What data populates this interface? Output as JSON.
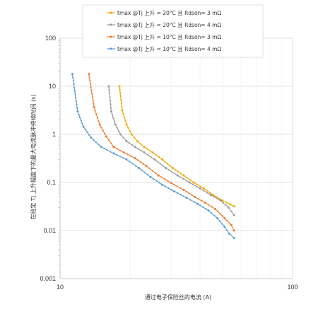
{
  "chart_data": {
    "type": "line",
    "title": "",
    "xlabel": "通过电子保险丝的电流 (A)",
    "ylabel": "在给定 Tj 上升幅度下的最大电流脉冲持续时间 (s)",
    "x_scale": "log",
    "y_scale": "log",
    "xlim": [
      10,
      100
    ],
    "ylim": [
      0.001,
      100
    ],
    "x_ticks": [
      "10",
      "100"
    ],
    "y_ticks": [
      "100",
      "10",
      "1",
      "0.1",
      "0.01",
      "0.001"
    ],
    "grid": "major",
    "legend_position": "top-center",
    "series": [
      {
        "name": "tmax @Tj 上升 = 20°C 且 Rdson= 3 mΩ",
        "color": "#f0a800",
        "points": [
          [
            18.0,
            10.0
          ],
          [
            18.5,
            3.2
          ],
          [
            19.3,
            1.6
          ],
          [
            20.3,
            1.0
          ],
          [
            21.5,
            0.72
          ],
          [
            23.0,
            0.55
          ],
          [
            25.0,
            0.42
          ],
          [
            27.5,
            0.3
          ],
          [
            30.5,
            0.2
          ],
          [
            34.0,
            0.14
          ],
          [
            37.5,
            0.1
          ],
          [
            41.5,
            0.075
          ],
          [
            45.5,
            0.055
          ],
          [
            50.0,
            0.042
          ],
          [
            54.0,
            0.035
          ],
          [
            56.0,
            0.032
          ]
        ]
      },
      {
        "name": "tmax @Tj 上升 = 20°C 且 Rdson= 4 mΩ",
        "color": "#999999",
        "points": [
          [
            16.2,
            10.0
          ],
          [
            16.6,
            3.0
          ],
          [
            17.3,
            1.6
          ],
          [
            18.2,
            1.0
          ],
          [
            19.3,
            0.72
          ],
          [
            21.0,
            0.55
          ],
          [
            23.0,
            0.42
          ],
          [
            25.5,
            0.3
          ],
          [
            28.5,
            0.2
          ],
          [
            32.0,
            0.14
          ],
          [
            36.0,
            0.1
          ],
          [
            40.0,
            0.075
          ],
          [
            44.5,
            0.055
          ],
          [
            49.0,
            0.042
          ],
          [
            53.0,
            0.03
          ],
          [
            56.0,
            0.021
          ]
        ]
      },
      {
        "name": "tmax @Tj 上升 = 10°C 且 Rdson= 3 mΩ",
        "color": "#ed7d31",
        "points": [
          [
            13.3,
            18.0
          ],
          [
            14.0,
            3.7
          ],
          [
            14.8,
            1.6
          ],
          [
            15.8,
            0.9
          ],
          [
            17.0,
            0.55
          ],
          [
            18.8,
            0.42
          ],
          [
            21.0,
            0.32
          ],
          [
            23.5,
            0.22
          ],
          [
            26.5,
            0.14
          ],
          [
            30.0,
            0.098
          ],
          [
            34.0,
            0.07
          ],
          [
            38.0,
            0.05
          ],
          [
            42.0,
            0.038
          ],
          [
            46.5,
            0.028
          ],
          [
            51.0,
            0.018
          ],
          [
            54.5,
            0.013
          ],
          [
            56.0,
            0.01
          ]
        ]
      },
      {
        "name": "tmax @Tj 上升 = 10°C 且 Rdson= 4 mΩ",
        "color": "#5b9bd5",
        "points": [
          [
            11.3,
            18.0
          ],
          [
            11.9,
            3.0
          ],
          [
            12.6,
            1.45
          ],
          [
            13.6,
            0.85
          ],
          [
            15.0,
            0.55
          ],
          [
            17.0,
            0.4
          ],
          [
            19.3,
            0.3
          ],
          [
            21.8,
            0.2
          ],
          [
            24.5,
            0.13
          ],
          [
            27.5,
            0.09
          ],
          [
            31.0,
            0.065
          ],
          [
            35.0,
            0.048
          ],
          [
            39.0,
            0.036
          ],
          [
            43.5,
            0.026
          ],
          [
            47.5,
            0.018
          ],
          [
            51.0,
            0.012
          ],
          [
            53.5,
            0.0085
          ],
          [
            56.0,
            0.007
          ]
        ]
      }
    ]
  }
}
